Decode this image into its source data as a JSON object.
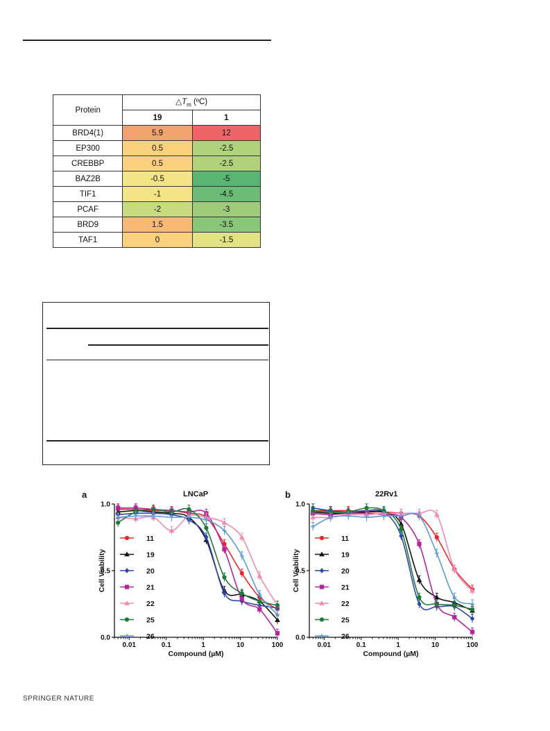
{
  "table": {
    "header_protein": "Protein",
    "header_delta": "△",
    "header_tm_T": "T",
    "header_tm_sub": "m",
    "header_unit": " (ºC)",
    "col_19": "19",
    "col_1": "1",
    "rows": [
      {
        "protein": "BRD4(1)",
        "v19": "5.9",
        "v1": "12",
        "c19": "#f2a26f",
        "c1": "#ec6568"
      },
      {
        "protein": "EP300",
        "v19": "0.5",
        "v1": "-2.5",
        "c19": "#fbd17e",
        "c1": "#b1d27c"
      },
      {
        "protein": "CREBBP",
        "v19": "0.5",
        "v1": "-2.5",
        "c19": "#fbd17e",
        "c1": "#b1d27c"
      },
      {
        "protein": "BAZ2B",
        "v19": "-0.5",
        "v1": "-5",
        "c19": "#f3e485",
        "c1": "#5ab574"
      },
      {
        "protein": "TIF1",
        "v19": "-1",
        "v1": "-4.5",
        "c19": "#f3e485",
        "c1": "#6cbb76"
      },
      {
        "protein": "PCAF",
        "v19": "-2",
        "v1": "-3",
        "c19": "#c9db80",
        "c1": "#9fcc7b"
      },
      {
        "protein": "BRD9",
        "v19": "1.5",
        "v1": "-3.5",
        "c19": "#f7b975",
        "c1": "#8ac679"
      },
      {
        "protein": "TAF1",
        "v19": "0",
        "v1": "-1.5",
        "c19": "#fbd17e",
        "c1": "#e2e384"
      }
    ]
  },
  "chart_data": [
    {
      "type": "line",
      "panel": "a",
      "title": "LNCaP",
      "xlabel": "Compound (µM)",
      "ylabel": "Cell Viability",
      "xscale": "log",
      "xlim": [
        0.004,
        100
      ],
      "ylim": [
        0,
        1.0
      ],
      "xticks": [
        "0.01",
        "0.1",
        "1",
        "10",
        "100"
      ],
      "yticks": [
        "0.0",
        "0.5",
        "1.0"
      ],
      "legend": "left",
      "x": [
        0.005,
        0.015,
        0.045,
        0.14,
        0.41,
        1.2,
        3.7,
        11,
        33,
        100
      ],
      "series": [
        {
          "name": "11",
          "color": "#e8262b",
          "marker": "circle",
          "values": [
            0.96,
            0.96,
            0.95,
            0.95,
            0.93,
            0.9,
            0.7,
            0.48,
            0.3,
            0.21
          ]
        },
        {
          "name": "19",
          "color": "#111111",
          "marker": "triangle",
          "values": [
            0.94,
            0.95,
            0.94,
            0.93,
            0.9,
            0.73,
            0.35,
            0.32,
            0.27,
            0.13
          ]
        },
        {
          "name": "20",
          "color": "#2a48a8",
          "marker": "diamond",
          "values": [
            0.92,
            0.93,
            0.93,
            0.92,
            0.88,
            0.75,
            0.33,
            0.27,
            0.24,
            0.22
          ]
        },
        {
          "name": "21",
          "color": "#b4239b",
          "marker": "square",
          "values": [
            0.97,
            0.97,
            0.96,
            0.95,
            0.94,
            0.93,
            0.66,
            0.29,
            0.21,
            0.03
          ]
        },
        {
          "name": "22",
          "color": "#f08bb3",
          "marker": "triangle",
          "values": [
            0.9,
            0.89,
            0.9,
            0.8,
            0.91,
            0.9,
            0.86,
            0.75,
            0.46,
            0.24
          ]
        },
        {
          "name": "25",
          "color": "#1f7a3a",
          "marker": "circle",
          "values": [
            0.86,
            0.94,
            0.96,
            0.94,
            0.96,
            0.82,
            0.45,
            0.33,
            0.27,
            0.24
          ]
        },
        {
          "name": "26",
          "color": "#5b9ad6",
          "marker": "cross",
          "values": [
            0.9,
            0.91,
            0.91,
            0.9,
            0.9,
            0.88,
            0.8,
            0.61,
            0.32,
            0.17
          ]
        }
      ]
    },
    {
      "type": "line",
      "panel": "b",
      "title": "22Rv1",
      "xlabel": "Compound (µM)",
      "ylabel": "Cell Viability",
      "xscale": "log",
      "xlim": [
        0.004,
        100
      ],
      "ylim": [
        0,
        1.0
      ],
      "xticks": [
        "0.01",
        "0.1",
        "1",
        "10",
        "100"
      ],
      "yticks": [
        "0.0",
        "0.5",
        "1.0"
      ],
      "legend": "left",
      "x": [
        0.005,
        0.015,
        0.045,
        0.14,
        0.41,
        1.2,
        3.7,
        11,
        33,
        100
      ],
      "series": [
        {
          "name": "11",
          "color": "#e8262b",
          "marker": "circle",
          "values": [
            0.95,
            0.95,
            0.95,
            0.94,
            0.94,
            0.93,
            0.91,
            0.75,
            0.51,
            0.36
          ]
        },
        {
          "name": "19",
          "color": "#111111",
          "marker": "triangle",
          "values": [
            0.94,
            0.93,
            0.93,
            0.94,
            0.94,
            0.85,
            0.43,
            0.3,
            0.26,
            0.2
          ]
        },
        {
          "name": "20",
          "color": "#2a48a8",
          "marker": "diamond",
          "values": [
            0.97,
            0.95,
            0.94,
            0.95,
            0.94,
            0.76,
            0.25,
            0.23,
            0.23,
            0.14
          ]
        },
        {
          "name": "21",
          "color": "#b4239b",
          "marker": "square",
          "values": [
            0.93,
            0.92,
            0.93,
            0.93,
            0.92,
            0.9,
            0.7,
            0.25,
            0.15,
            0.04
          ]
        },
        {
          "name": "22",
          "color": "#f08bb3",
          "marker": "triangle",
          "values": [
            0.9,
            0.9,
            0.92,
            0.92,
            0.93,
            0.93,
            0.93,
            0.92,
            0.51,
            0.35
          ]
        },
        {
          "name": "25",
          "color": "#1f7a3a",
          "marker": "circle",
          "values": [
            0.95,
            0.94,
            0.94,
            0.97,
            0.95,
            0.81,
            0.3,
            0.25,
            0.24,
            0.21
          ]
        },
        {
          "name": "26",
          "color": "#5b9ad6",
          "marker": "cross",
          "values": [
            0.83,
            0.9,
            0.91,
            0.9,
            0.91,
            0.91,
            0.91,
            0.63,
            0.3,
            0.25
          ]
        }
      ]
    }
  ],
  "footer": {
    "publisher": "SPRINGER NATURE"
  }
}
